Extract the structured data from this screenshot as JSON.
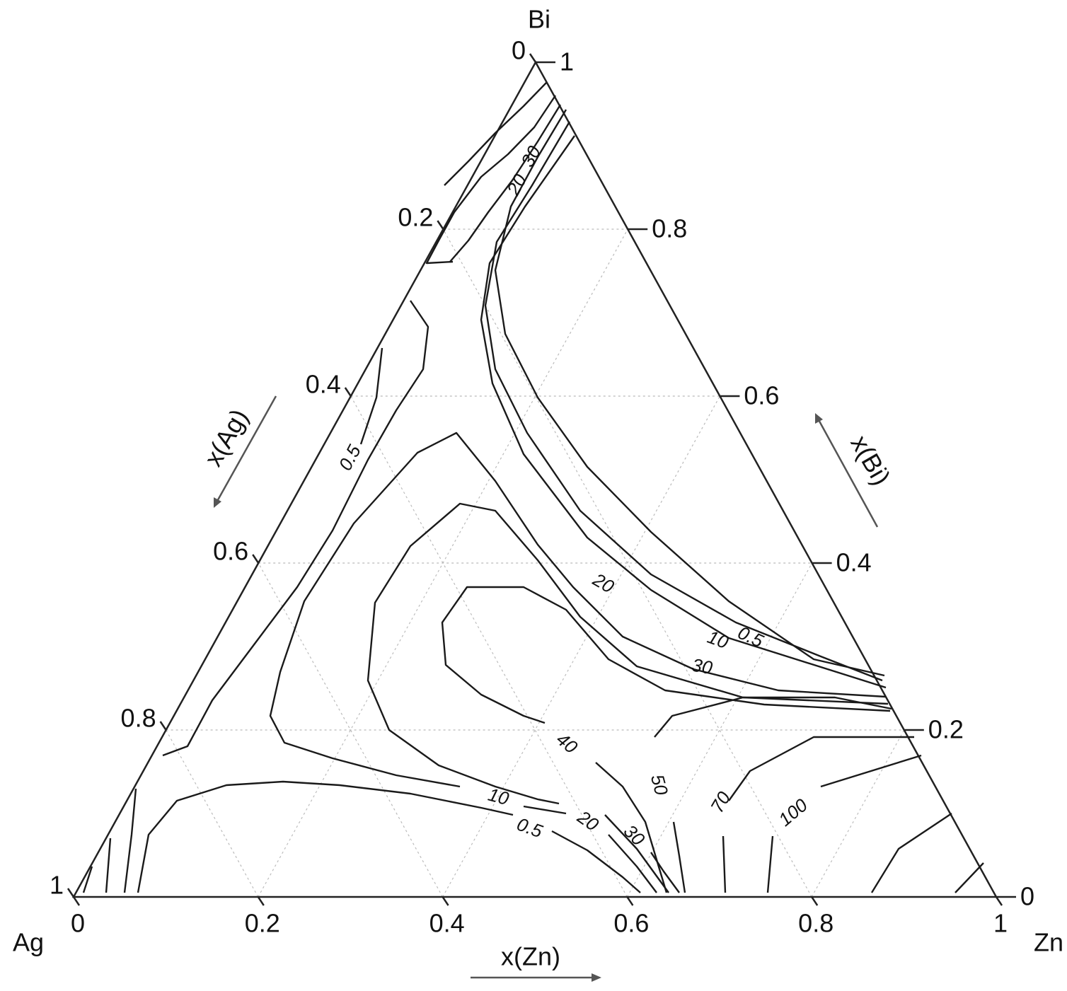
{
  "chart_data": {
    "type": "ternary-contour",
    "vertices": {
      "left": "Ag",
      "right": "Zn",
      "top": "Bi"
    },
    "axes": [
      {
        "label": "x(Zn)",
        "ticks": [
          0,
          0.2,
          0.4,
          0.6,
          0.8,
          1
        ]
      },
      {
        "label": "x(Bi)",
        "ticks": [
          0,
          0.2,
          0.4,
          0.6,
          0.8,
          1
        ]
      },
      {
        "label": "x(Ag)",
        "ticks": [
          0,
          0.2,
          0.4,
          0.6,
          0.8,
          1
        ]
      }
    ],
    "grid": true,
    "contour_levels": [
      0.5,
      10,
      20,
      30,
      40,
      50,
      70,
      100
    ],
    "contour_labels": [
      20,
      30,
      0.5,
      20,
      10,
      0.5,
      30,
      40,
      50,
      70,
      100,
      10,
      20,
      0.5,
      30
    ]
  }
}
